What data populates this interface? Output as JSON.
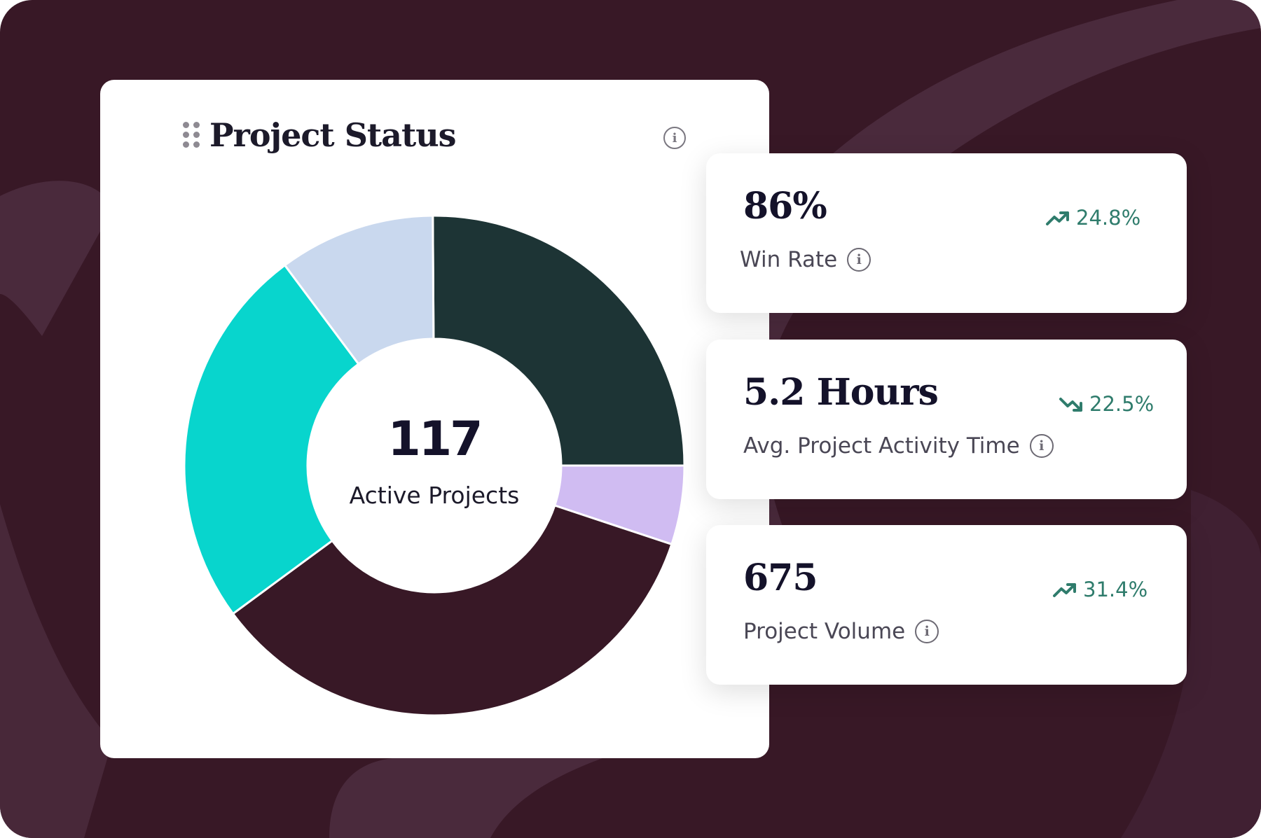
{
  "colors": {
    "background": "#381826",
    "brush": "#4a2a3c",
    "card": "#ffffff",
    "trend": "#2f7c6c"
  },
  "status_card": {
    "title": "Project Status",
    "drag_icon": "drag-handle-icon",
    "info_icon": "info-icon",
    "info_glyph": "i",
    "center_value": "117",
    "center_label": "Active Projects"
  },
  "chart_data": {
    "type": "pie",
    "donut": true,
    "series": [
      {
        "color": "#1d3435",
        "value": 25.1
      },
      {
        "color": "#d0bcf2",
        "value": 5.1
      },
      {
        "color": "#381826",
        "value": 34.8
      },
      {
        "color": "#08d5cd",
        "value": 24.9
      },
      {
        "color": "#c9d8ee",
        "value": 10.1
      }
    ]
  },
  "metrics": [
    {
      "value": "86%",
      "label": "Win Rate",
      "trend": "24.8%",
      "trend_direction": "up",
      "trend_icon": "trending-up-icon",
      "info_glyph": "i"
    },
    {
      "value": "5.2 Hours",
      "label": "Avg. Project Activity Time",
      "trend": "22.5%",
      "trend_direction": "down",
      "trend_icon": "trending-down-icon",
      "info_glyph": "i"
    },
    {
      "value": "675",
      "label": "Project Volume",
      "trend": "31.4%",
      "trend_direction": "up",
      "trend_icon": "trending-up-icon",
      "info_glyph": "i"
    }
  ]
}
